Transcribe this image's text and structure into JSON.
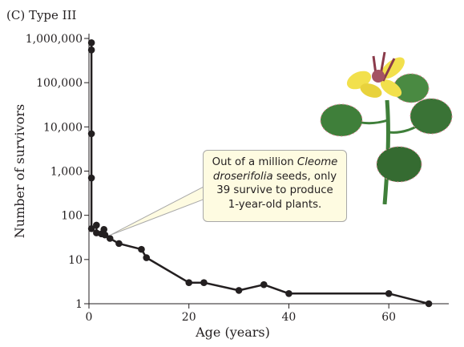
{
  "panel_label": "(C) Type III",
  "callout": {
    "part1": "Out of a million ",
    "species": "Cleome droserifolia",
    "part2": " seeds, only 39 survive to produce 1-year-old plants."
  },
  "colors": {
    "line": "#231f20",
    "callout_bg": "#fefbe1",
    "leaf": "#3f7f3a",
    "flower": "#f2e04c",
    "stamen": "#8a3a4a"
  },
  "icons": {
    "illustration": "cleome-plant-icon"
  },
  "chart_data": {
    "type": "line",
    "title": "",
    "xlabel": "Age (years)",
    "ylabel": "Number of survivors",
    "xlim": [
      0,
      72
    ],
    "ylim": [
      1,
      1000000
    ],
    "yscale": "log",
    "x_ticks": [
      0,
      20,
      40,
      60
    ],
    "y_ticks": [
      1,
      10,
      100,
      1000,
      10000,
      100000,
      1000000
    ],
    "y_tick_labels": [
      "1",
      "10",
      "100",
      "1,000",
      "10,000",
      "100,000",
      "1,000,000"
    ],
    "grid": false,
    "series": [
      {
        "name": "",
        "points": [
          [
            0.5,
            800000
          ],
          [
            0.5,
            550000
          ],
          [
            0.5,
            7000
          ],
          [
            0.5,
            700
          ],
          [
            0.5,
            50
          ],
          [
            1.5,
            60
          ],
          [
            1.5,
            40
          ],
          [
            2.5,
            38
          ],
          [
            3,
            48
          ],
          [
            3.2,
            36
          ],
          [
            4.2,
            30
          ],
          [
            6,
            23
          ],
          [
            10.5,
            17
          ],
          [
            11.5,
            11
          ],
          [
            20,
            3
          ],
          [
            23,
            3
          ],
          [
            30,
            2
          ],
          [
            35,
            2.7
          ],
          [
            40,
            1.7
          ],
          [
            60,
            1.7
          ],
          [
            68,
            1
          ]
        ],
        "markers": true
      }
    ]
  }
}
